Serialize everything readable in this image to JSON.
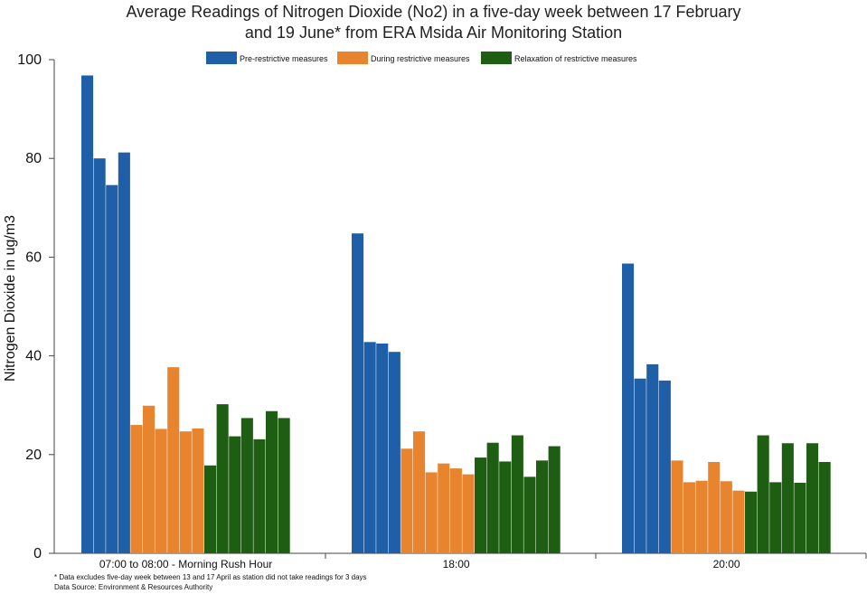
{
  "chart_data": {
    "type": "bar",
    "title_lines": [
      "Average Readings of Nitrogen Dioxide (No2) in a five-day week between 17 February",
      "and 19 June* from ERA Msida Air Monitoring Station"
    ],
    "ylabel": "Nitrogen Dioxide in ug/m3",
    "xlabel": "",
    "ylim": [
      0,
      100
    ],
    "yticks": [
      0,
      20,
      40,
      60,
      80,
      100
    ],
    "grid": false,
    "legend_position": "top",
    "categories": [
      "07:00 to 08:00 - Morning Rush Hour",
      "18:00",
      "20:00"
    ],
    "series": [
      {
        "name": "Pre-restrictive measures",
        "color": "#1f5fa8",
        "values": [
          [
            96.8,
            80.0,
            74.6,
            81.2
          ],
          [
            64.8,
            42.8,
            42.5,
            40.8
          ],
          [
            58.7,
            35.4,
            38.3,
            35.0
          ]
        ]
      },
      {
        "name": "During restrictive measures",
        "color": "#e8842e",
        "values": [
          [
            26.0,
            29.9,
            25.2,
            37.7,
            24.7,
            25.3
          ],
          [
            21.2,
            24.7,
            16.4,
            18.2,
            17.2,
            16.0
          ],
          [
            18.8,
            14.4,
            14.7,
            18.5,
            14.6,
            12.7
          ]
        ]
      },
      {
        "name": "Relaxation of restrictive measures",
        "color": "#1e5e12",
        "values": [
          [
            17.8,
            30.2,
            23.7,
            27.4,
            23.1,
            28.8,
            27.4
          ],
          [
            19.4,
            22.4,
            18.6,
            23.9,
            15.5,
            18.8,
            21.7
          ],
          [
            12.5,
            23.9,
            14.4,
            22.3,
            14.3,
            22.3,
            18.5
          ]
        ]
      }
    ],
    "footnotes": [
      "* Data excludes five-day week between 13 and 17 April as station did not take readings for 3 days",
      "Data Source: Environment & Resources Authority"
    ]
  }
}
